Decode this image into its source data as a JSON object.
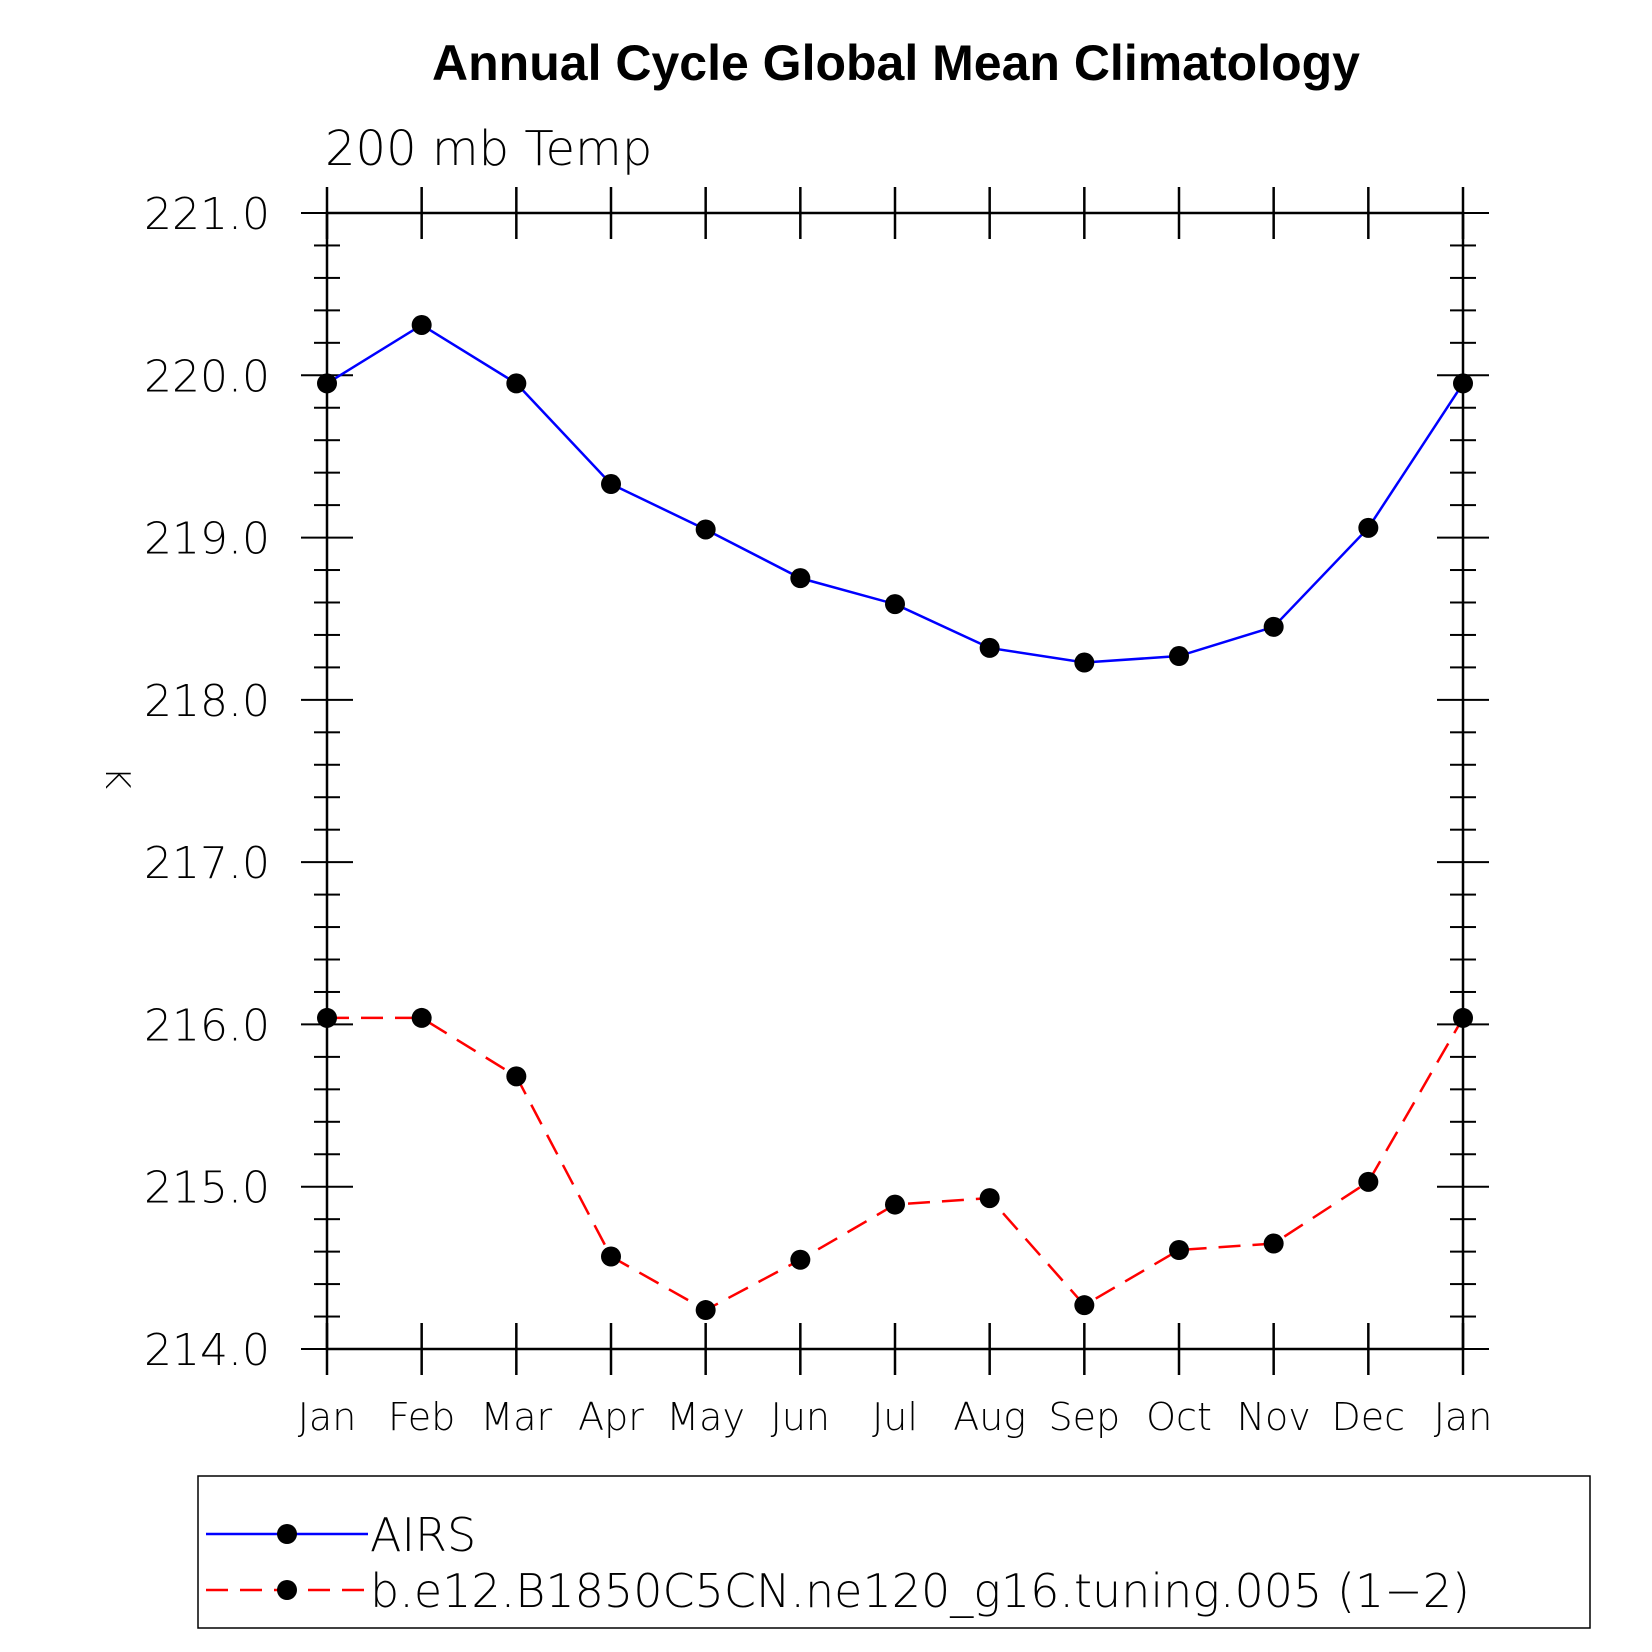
{
  "chart_data": {
    "type": "line",
    "title": "Annual Cycle Global Mean Climatology",
    "subtitle": "200 mb Temp",
    "xlabel": "",
    "ylabel": "K",
    "categories": [
      "Jan",
      "Feb",
      "Mar",
      "Apr",
      "May",
      "Jun",
      "Jul",
      "Aug",
      "Sep",
      "Oct",
      "Nov",
      "Dec",
      "Jan"
    ],
    "yticks": [
      "214.0",
      "215.0",
      "216.0",
      "217.0",
      "218.0",
      "219.0",
      "220.0",
      "221.0"
    ],
    "ylim": [
      214.0,
      221.0
    ],
    "grid": false,
    "legend_position": "bottom",
    "series": [
      {
        "name": "AIRS",
        "color": "#0000ff",
        "dash": "solid",
        "marker": "filled-circle",
        "values": [
          219.95,
          220.31,
          219.95,
          219.33,
          219.05,
          218.75,
          218.59,
          218.32,
          218.23,
          218.27,
          218.45,
          219.06,
          219.95
        ]
      },
      {
        "name": "b.e12.B1850C5CN.ne120_g16.tuning.005 (1−2)",
        "color": "#ff0000",
        "dash": "dashed",
        "marker": "filled-circle",
        "values": [
          216.04,
          216.04,
          215.68,
          214.57,
          214.24,
          214.55,
          214.89,
          214.93,
          214.27,
          214.61,
          214.65,
          215.03,
          216.04
        ]
      }
    ]
  }
}
